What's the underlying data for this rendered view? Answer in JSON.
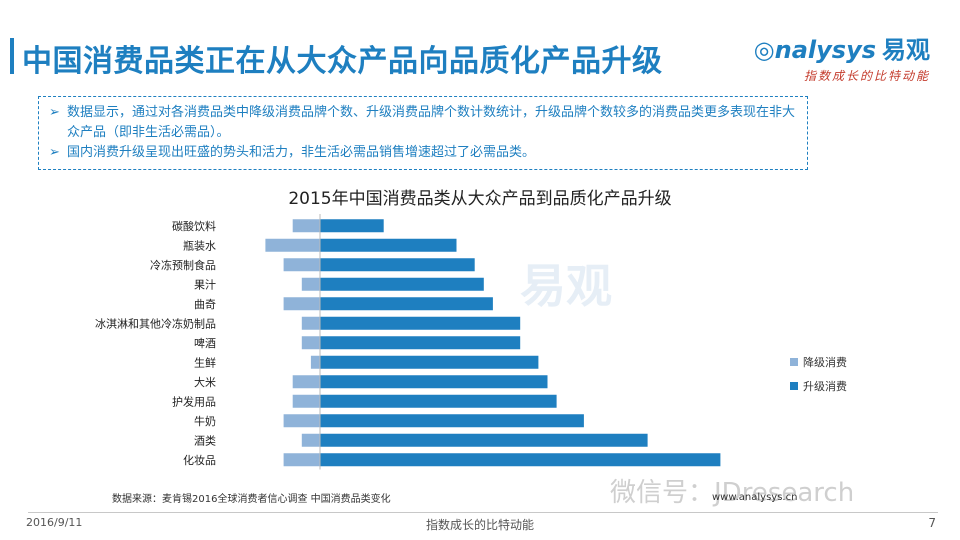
{
  "header": {
    "title": "中国消费品类正在从大众产品向品质化产品升级",
    "logo_text": "nalysys",
    "logo_cn": "易观",
    "logo_tagline": "指数成长的比特动能"
  },
  "notes": [
    "数据显示，通过对各消费品类中降级消费品牌个数、升级消费品牌个数计数统计，升级品牌个数较多的消费品类更多表现在非大众产品（即非生活必需品）。",
    "国内消费升级呈现出旺盛的势头和活力，非生活必需品销售增速超过了必需品类。"
  ],
  "chart_data": {
    "type": "bar",
    "orientation": "horizontal",
    "title": "2015年中国消费品类从大众产品到品质化产品升级",
    "categories": [
      "碳酸饮料",
      "瓶装水",
      "冷冻预制食品",
      "果汁",
      "曲奇",
      "冰淇淋和其他冷冻奶制品",
      "啤酒",
      "生鲜",
      "大米",
      "护发用品",
      "牛奶",
      "酒类",
      "化妆品"
    ],
    "series": [
      {
        "name": "降级消费",
        "color": "#8fb3d9",
        "values": [
          -3,
          -6,
          -4,
          -2,
          -4,
          -2,
          -2,
          -1,
          -3,
          -3,
          -4,
          -2,
          -4
        ]
      },
      {
        "name": "升级消费",
        "color": "#1e7fc0",
        "values": [
          7,
          15,
          17,
          18,
          19,
          22,
          22,
          24,
          25,
          26,
          29,
          36,
          44
        ]
      }
    ],
    "xlim": [
      -6,
      44
    ]
  },
  "legend": [
    "降级消费",
    "升级消费"
  ],
  "footer": {
    "source": "数据来源：麦肯锡2016全球消费者信心调查 中国消费品类变化",
    "website": "www.analysys.cn",
    "wechat": "微信号：JDresearch",
    "date": "2016/9/11",
    "slogan": "指数成长的比特动能",
    "page": "7"
  },
  "colors": {
    "accent": "#1e7fc0",
    "downgrade": "#8fb3d9"
  }
}
